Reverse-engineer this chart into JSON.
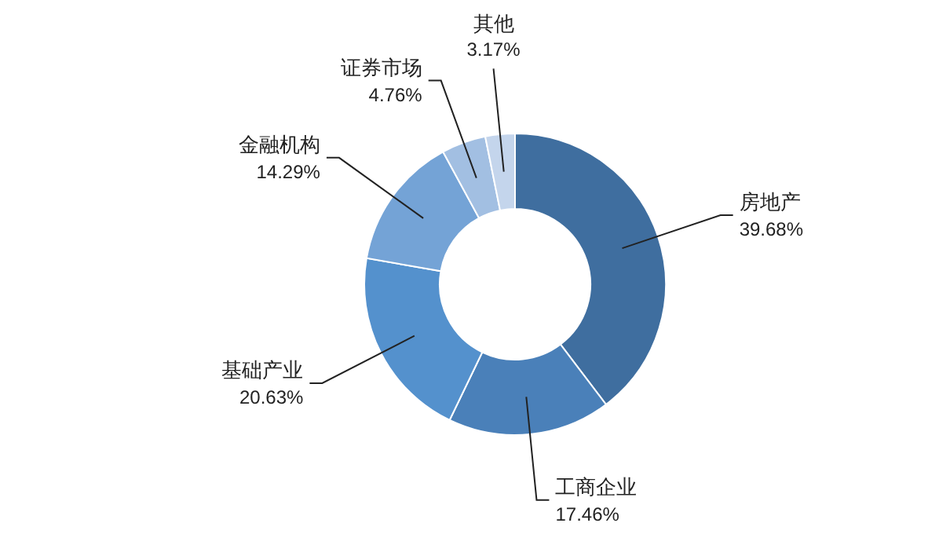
{
  "chart_data": {
    "type": "donut",
    "categories": [
      "房地产",
      "工商企业",
      "基础产业",
      "金融机构",
      "证券市场",
      "其他"
    ],
    "values": [
      39.68,
      17.46,
      20.63,
      14.29,
      4.76,
      3.17
    ],
    "value_labels": [
      "39.68%",
      "17.46%",
      "20.63%",
      "14.29%",
      "4.76%",
      "3.17%"
    ],
    "colors": [
      "#3f6e9f",
      "#4a80b9",
      "#5491cd",
      "#74a3d6",
      "#a2bfe2",
      "#c4d5ec"
    ],
    "legend": false
  }
}
